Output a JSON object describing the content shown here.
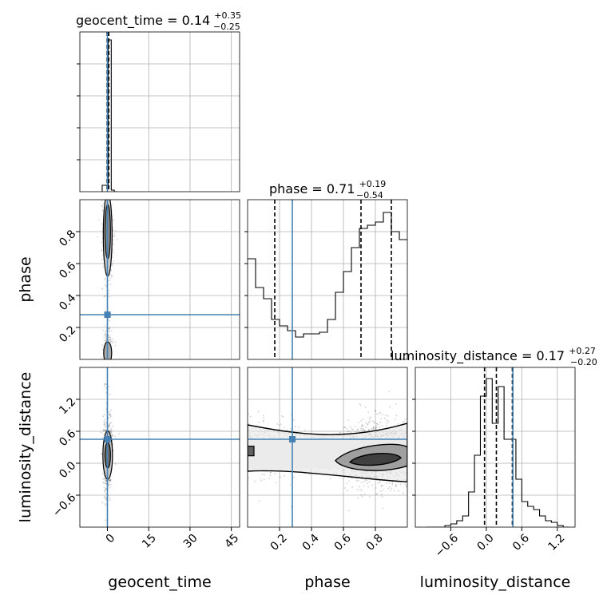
{
  "chart_data": {
    "type": "corner",
    "parameters": [
      "geocent_time",
      "phase",
      "luminosity_distance"
    ],
    "truth": {
      "geocent_time": 0.0,
      "phase": 0.28,
      "luminosity_distance": 0.45
    },
    "truth_color": "#4682b4",
    "grid": true,
    "diagonal": [
      {
        "parameter": "geocent_time",
        "title_main": "geocent_time = 0.14",
        "title_sup": "+0.35",
        "title_sub": "−0.25",
        "xlim": [
          -10,
          48
        ],
        "quantiles": [
          -0.11,
          0.14,
          0.49
        ],
        "bin_edges": [
          -1.9,
          -0.8,
          0.3,
          1.4,
          2.5,
          3.6
        ],
        "counts": [
          0.04,
          0.04,
          0.95,
          0.01,
          0.0
        ],
        "ymax": 1.0
      },
      {
        "parameter": "phase",
        "title_main": "phase = 0.71",
        "title_sup": "+0.19",
        "title_sub": "−0.54",
        "xlim": [
          0.0,
          1.0
        ],
        "quantiles": [
          0.17,
          0.71,
          0.9
        ],
        "bin_edges": [
          0.0,
          0.05,
          0.1,
          0.15,
          0.2,
          0.25,
          0.3,
          0.35,
          0.4,
          0.45,
          0.5,
          0.55,
          0.6,
          0.65,
          0.7,
          0.75,
          0.8,
          0.85,
          0.9,
          0.95,
          1.0
        ],
        "counts": [
          0.63,
          0.45,
          0.38,
          0.25,
          0.21,
          0.18,
          0.14,
          0.16,
          0.16,
          0.17,
          0.25,
          0.42,
          0.55,
          0.7,
          0.82,
          0.84,
          0.86,
          0.92,
          0.8,
          0.75
        ],
        "ymax": 1.0
      },
      {
        "parameter": "luminosity_distance",
        "title_main": "luminosity_distance = 0.17",
        "title_sup": "+0.27",
        "title_sub": "−0.20",
        "xlim": [
          -1.2,
          1.5
        ],
        "quantiles": [
          -0.03,
          0.17,
          0.44
        ],
        "bin_edges": [
          -1.0,
          -0.9,
          -0.8,
          -0.7,
          -0.6,
          -0.5,
          -0.4,
          -0.3,
          -0.2,
          -0.1,
          0.0,
          0.1,
          0.2,
          0.3,
          0.4,
          0.5,
          0.6,
          0.7,
          0.8,
          0.9,
          1.0,
          1.1,
          1.2,
          1.3,
          1.4
        ],
        "counts": [
          0.0,
          0.0,
          0.0,
          0.01,
          0.02,
          0.04,
          0.07,
          0.22,
          0.45,
          0.82,
          0.93,
          0.65,
          0.88,
          0.55,
          0.55,
          0.3,
          0.16,
          0.13,
          0.11,
          0.07,
          0.04,
          0.03,
          0.01,
          0.0
        ],
        "ymax": 1.0
      }
    ],
    "scatter_panels": [
      {
        "x": "geocent_time",
        "y": "phase",
        "xlim": [
          -10,
          48
        ],
        "ylim": [
          0.0,
          1.0
        ],
        "description": "narrow vertical band at geocent_time ~0, phase concentrated near 0.8 and near 0.05"
      },
      {
        "x": "geocent_time",
        "y": "luminosity_distance",
        "xlim": [
          -10,
          48
        ],
        "ylim": [
          -1.2,
          1.8
        ],
        "description": "narrow vertical band at geocent_time ~0, luminosity_distance from -0.8 to 1.4"
      },
      {
        "x": "phase",
        "y": "luminosity_distance",
        "xlim": [
          0.0,
          1.0
        ],
        "ylim": [
          -1.2,
          1.8
        ],
        "description": "horizontal band at luminosity_distance ~0.2 with dense modes near phase 0.72 and 0.88"
      }
    ],
    "axes": {
      "geocent_time": {
        "label": "geocent_time",
        "ticks": [
          0,
          15,
          30,
          45
        ],
        "tick_labels": [
          "0",
          "15",
          "30",
          "45"
        ]
      },
      "phase_x": {
        "label": "phase",
        "ticks": [
          0.2,
          0.4,
          0.6,
          0.8
        ],
        "tick_labels": [
          "0.2",
          "0.4",
          "0.6",
          "0.8"
        ]
      },
      "phase_y": {
        "label": "phase",
        "ticks": [
          0.2,
          0.4,
          0.6,
          0.8
        ],
        "tick_labels": [
          "0.2",
          "0.4",
          "0.6",
          "0.8"
        ]
      },
      "luminosity_distance_x": {
        "label": "luminosity_distance",
        "ticks": [
          -0.6,
          0.0,
          0.6,
          1.2
        ],
        "tick_labels": [
          "−0.6",
          "0.0",
          "0.6",
          "1.2"
        ]
      },
      "luminosity_distance_y": {
        "label": "luminosity_distance",
        "ticks": [
          -0.6,
          0.0,
          0.6,
          1.2
        ],
        "tick_labels": [
          "−0.6",
          "0.0",
          "0.6",
          "1.2"
        ]
      }
    }
  }
}
